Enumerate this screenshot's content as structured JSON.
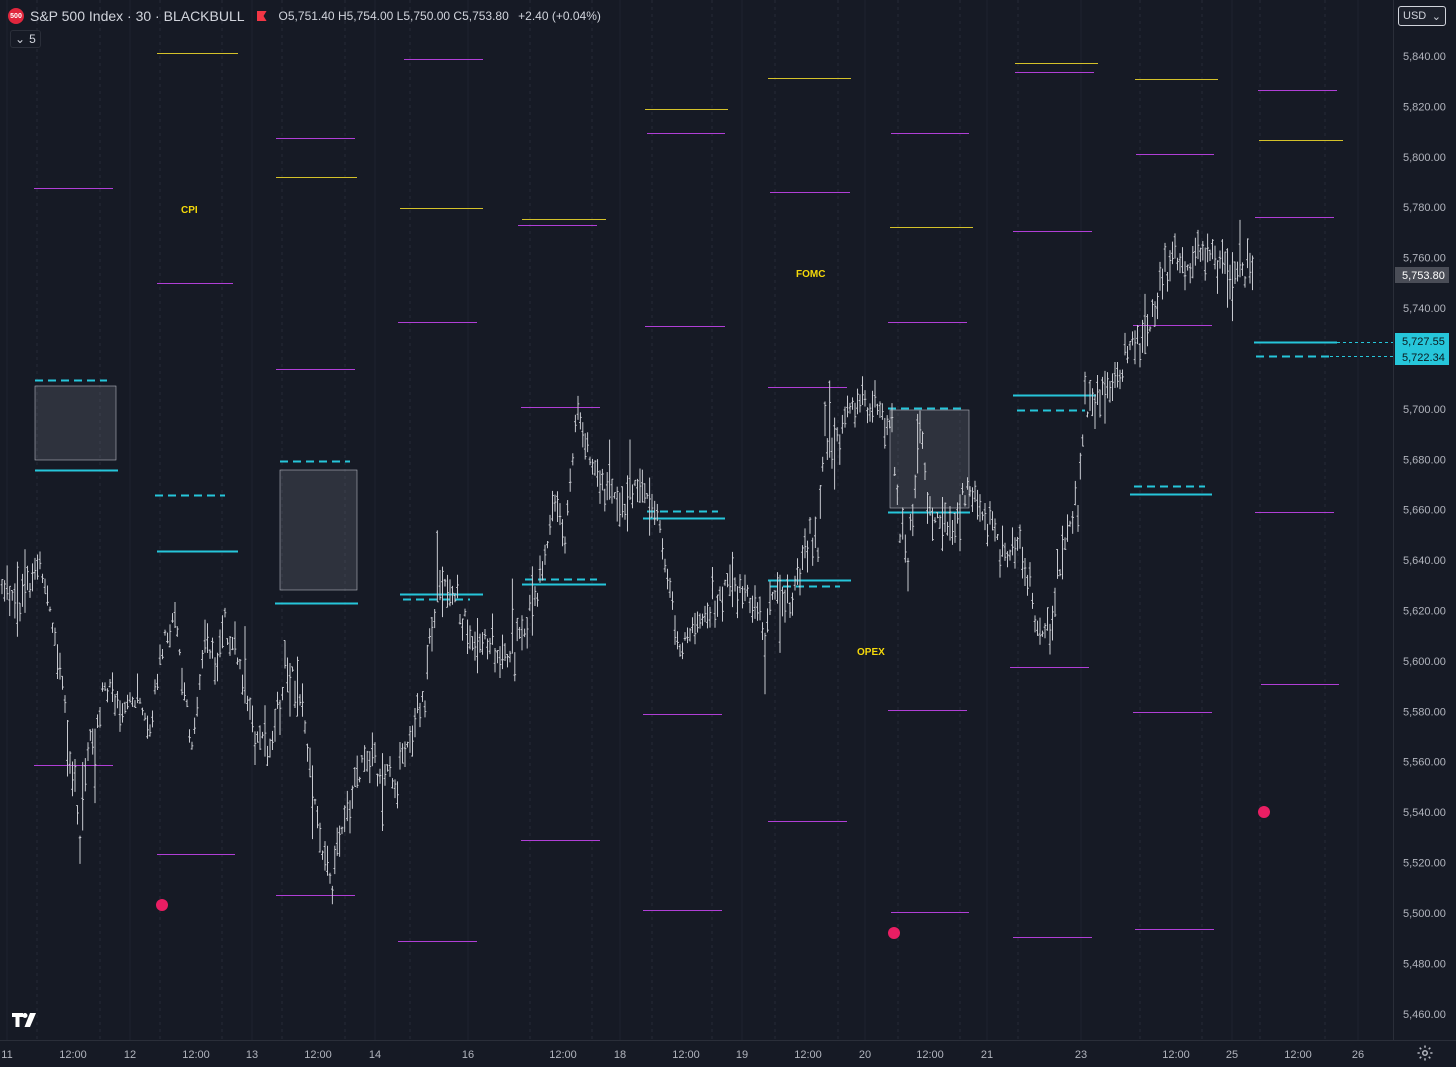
{
  "header": {
    "logo_label": "500",
    "title": "S&P 500 Index · 30 · BLACKBULL",
    "open": "O5,751.40",
    "high": "H5,754.00",
    "low": "L5,750.00",
    "close": "C5,753.80",
    "change": "+2.40 (+0.04%)"
  },
  "indicator_toggle": {
    "count": "5"
  },
  "currency": "USD",
  "colors": {
    "background": "#161a25",
    "candle": "#c7c9d0",
    "yellow_level": "#d4c12a",
    "magenta_level": "#b03fd6",
    "cyan_level": "#26c6da",
    "event_dot": "#e91e63",
    "last_price_bg": "#4a4d57",
    "cyan_tag_bg": "#26c6da"
  },
  "price_axis": {
    "labels": [
      "5,840.00",
      "5,820.00",
      "5,800.00",
      "5,780.00",
      "5,760.00",
      "5,740.00",
      "5,720.00",
      "5,700.00",
      "5,680.00",
      "5,660.00",
      "5,640.00",
      "5,620.00",
      "5,600.00",
      "5,580.00",
      "5,560.00",
      "5,540.00",
      "5,520.00",
      "5,500.00",
      "5,480.00",
      "5,460.00"
    ],
    "last_price": "5,753.80",
    "cyan_tag_1": "5,727.55",
    "cyan_tag_2": "5,722.34"
  },
  "time_axis": {
    "labels": [
      "11",
      "12:00",
      "12",
      "12:00",
      "13",
      "12:00",
      "14",
      "16",
      "12:00",
      "18",
      "12:00",
      "19",
      "12:00",
      "20",
      "12:00",
      "21",
      "23",
      "12:00",
      "25",
      "12:00",
      "26"
    ]
  },
  "events": [
    "CPI",
    "FOMC",
    "OPEX"
  ],
  "chart_data": {
    "type": "line",
    "title": "S&P 500 Index · 30 · BLACKBULL",
    "xlabel": "",
    "ylabel": "",
    "ylim": [
      5452,
      5858
    ],
    "x": [
      "11",
      "12",
      "13",
      "14",
      "16",
      "18",
      "19",
      "20",
      "21",
      "23",
      "25"
    ],
    "series": [
      {
        "values": [
          5630,
          5555,
          5540,
          5560,
          5625,
          5645,
          5620,
          5690,
          5660,
          5710,
          5753.8
        ]
      }
    ],
    "last_close": 5753.8
  }
}
